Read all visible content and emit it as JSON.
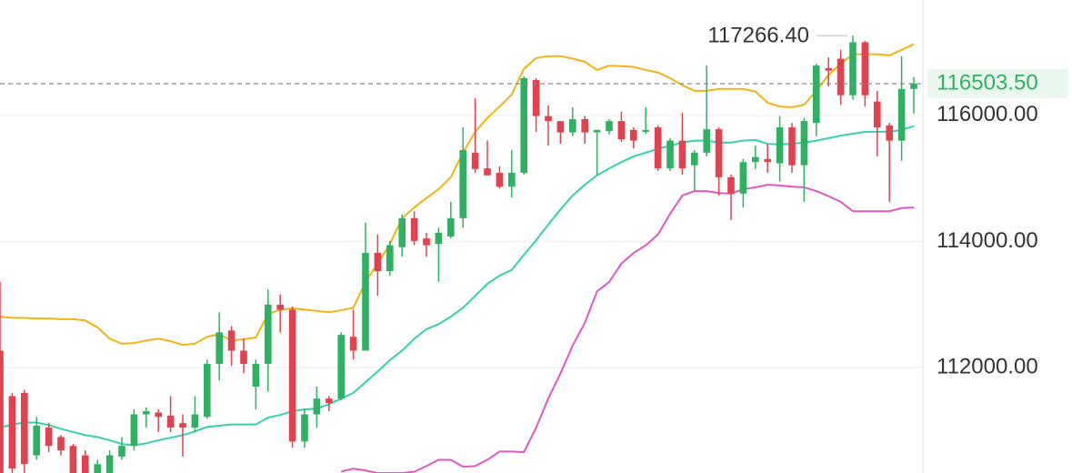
{
  "chart_data": {
    "type": "candlestick",
    "ylim": [
      110330,
      117830
    ],
    "yticks": [
      {
        "value": 112000,
        "label": "112000.00"
      },
      {
        "value": 114000,
        "label": "114000.00"
      },
      {
        "value": 116000,
        "label": "116000.00"
      }
    ],
    "grid": true,
    "up_color": "#2fb163",
    "down_color": "#e2414f",
    "open": [
      112270,
      111550,
      111600,
      110610,
      111050,
      110900,
      110760,
      110610,
      110330,
      110330,
      110590,
      110760,
      111260,
      111290,
      111240,
      111120,
      111050,
      111220,
      112060,
      112590,
      112270,
      111700,
      112060,
      113000,
      112920,
      110830,
      111260,
      111510,
      111510,
      112490,
      112270,
      113820,
      113530,
      113910,
      114370,
      114050,
      113960,
      114080,
      114370,
      115410,
      115160,
      115090,
      114870,
      115090,
      116560,
      115990,
      115910,
      115730,
      115940,
      115730,
      115750,
      115910,
      115770,
      115740,
      115810,
      115160,
      115600,
      115210,
      115410,
      115780,
      115020,
      114760,
      115260,
      115310,
      115240,
      115810,
      115210,
      115880,
      116750,
      116900,
      116320,
      117160,
      116220,
      115840,
      115600,
      116420
    ],
    "high": [
      113360,
      111600,
      111650,
      111220,
      111120,
      110930,
      110790,
      110690,
      110540,
      110690,
      110900,
      111340,
      111370,
      111340,
      111550,
      111260,
      111550,
      112130,
      112880,
      112660,
      112460,
      112130,
      113240,
      113160,
      112970,
      111340,
      111700,
      111550,
      112560,
      112920,
      114300,
      114110,
      114010,
      114430,
      114480,
      114140,
      114220,
      114630,
      115810,
      116270,
      115600,
      115190,
      115450,
      116620,
      116590,
      116160,
      115910,
      116130,
      115990,
      115770,
      115940,
      116060,
      115810,
      116130,
      115840,
      115640,
      116040,
      115450,
      116790,
      115810,
      115060,
      115310,
      115520,
      115550,
      115990,
      115880,
      115960,
      116820,
      116920,
      117040,
      117266.4,
      117180,
      116390,
      115880,
      116940,
      116610
    ],
    "low": [
      110330,
      110330,
      110330,
      110540,
      110660,
      110610,
      110330,
      110330,
      110330,
      110330,
      110540,
      110690,
      111050,
      110980,
      110980,
      110590,
      110980,
      111190,
      111800,
      112030,
      111910,
      111340,
      111620,
      112560,
      110730,
      110730,
      111050,
      111310,
      111480,
      112130,
      112270,
      113140,
      113460,
      113760,
      113940,
      113760,
      113360,
      114050,
      114220,
      115090,
      115050,
      114840,
      114700,
      115060,
      115740,
      115520,
      115550,
      115670,
      115550,
      115050,
      115700,
      115580,
      115480,
      115710,
      115120,
      115120,
      115060,
      114800,
      115350,
      114730,
      114340,
      114540,
      115150,
      115090,
      114950,
      115090,
      114630,
      115670,
      116460,
      116170,
      116250,
      116140,
      115350,
      114630,
      115280,
      116030
    ],
    "close": [
      110330,
      110400,
      110470,
      111080,
      110760,
      110690,
      110330,
      110330,
      110470,
      110610,
      110760,
      111260,
      111310,
      111220,
      111050,
      111050,
      111260,
      112060,
      112560,
      112270,
      112060,
      112060,
      113000,
      112920,
      110830,
      111260,
      111510,
      111440,
      112520,
      112270,
      113820,
      113530,
      113940,
      114370,
      114010,
      113940,
      114140,
      114370,
      115450,
      115150,
      115050,
      114870,
      115090,
      116590,
      115990,
      115910,
      115730,
      115940,
      115730,
      115770,
      115910,
      115620,
      115600,
      115770,
      115160,
      115600,
      115160,
      115410,
      115780,
      115020,
      114760,
      115260,
      115340,
      115260,
      115810,
      115210,
      115910,
      116790,
      116710,
      116320,
      117160,
      116320,
      115810,
      115600,
      116420,
      116503.5
    ],
    "series": [
      {
        "color": "#f2b315",
        "values": [
          112810,
          112790,
          112790,
          112780,
          112780,
          112770,
          112770,
          112750,
          112640,
          112460,
          112380,
          112390,
          112430,
          112460,
          112420,
          112360,
          112380,
          112490,
          112530,
          112430,
          112450,
          112480,
          112850,
          112920,
          112940,
          112920,
          112900,
          112880,
          112910,
          112950,
          113360,
          113650,
          113960,
          114370,
          114540,
          114690,
          114830,
          115020,
          115410,
          115740,
          115960,
          116140,
          116330,
          116740,
          116910,
          116940,
          116940,
          116900,
          116850,
          116720,
          116790,
          116780,
          116770,
          116720,
          116680,
          116590,
          116480,
          116390,
          116390,
          116420,
          116420,
          116420,
          116380,
          116200,
          116140,
          116130,
          116170,
          116390,
          116640,
          116820,
          116970,
          116970,
          116970,
          116950,
          117040,
          117130
        ]
      },
      {
        "color": "#35d1ae",
        "values": [
          111050,
          111100,
          111130,
          111130,
          111090,
          111030,
          110980,
          110930,
          110900,
          110850,
          110790,
          110770,
          110800,
          110850,
          110890,
          110930,
          110990,
          111060,
          111080,
          111100,
          111100,
          111100,
          111210,
          111250,
          111310,
          111340,
          111350,
          111420,
          111510,
          111600,
          111770,
          111940,
          112120,
          112270,
          112460,
          112610,
          112690,
          112810,
          112950,
          113140,
          113330,
          113460,
          113550,
          113790,
          114020,
          114270,
          114510,
          114730,
          114900,
          115050,
          115160,
          115260,
          115350,
          115410,
          115470,
          115520,
          115570,
          115600,
          115600,
          115570,
          115570,
          115600,
          115610,
          115550,
          115540,
          115550,
          115570,
          115600,
          115640,
          115680,
          115710,
          115740,
          115740,
          115740,
          115770,
          115830
        ]
      },
      {
        "color": "#e158c3",
        "values": [
          null,
          null,
          null,
          null,
          null,
          null,
          null,
          null,
          null,
          null,
          null,
          null,
          null,
          null,
          null,
          null,
          null,
          null,
          null,
          null,
          null,
          null,
          null,
          null,
          null,
          null,
          null,
          null,
          110350,
          110400,
          110370,
          110330,
          110330,
          110330,
          110350,
          110440,
          110540,
          110540,
          110430,
          110440,
          110540,
          110670,
          110670,
          110660,
          111050,
          111510,
          111910,
          112350,
          112710,
          113210,
          113360,
          113650,
          113820,
          113940,
          114110,
          114440,
          114730,
          114800,
          114800,
          114770,
          114760,
          114830,
          114860,
          114900,
          114890,
          114870,
          114860,
          114800,
          114720,
          114630,
          114480,
          114480,
          114480,
          114480,
          114530,
          114540
        ]
      }
    ],
    "last_price": {
      "value": 116503.5,
      "label": "116503.50"
    },
    "high_marker": {
      "value": 117266.4,
      "label": "117266.40"
    }
  }
}
